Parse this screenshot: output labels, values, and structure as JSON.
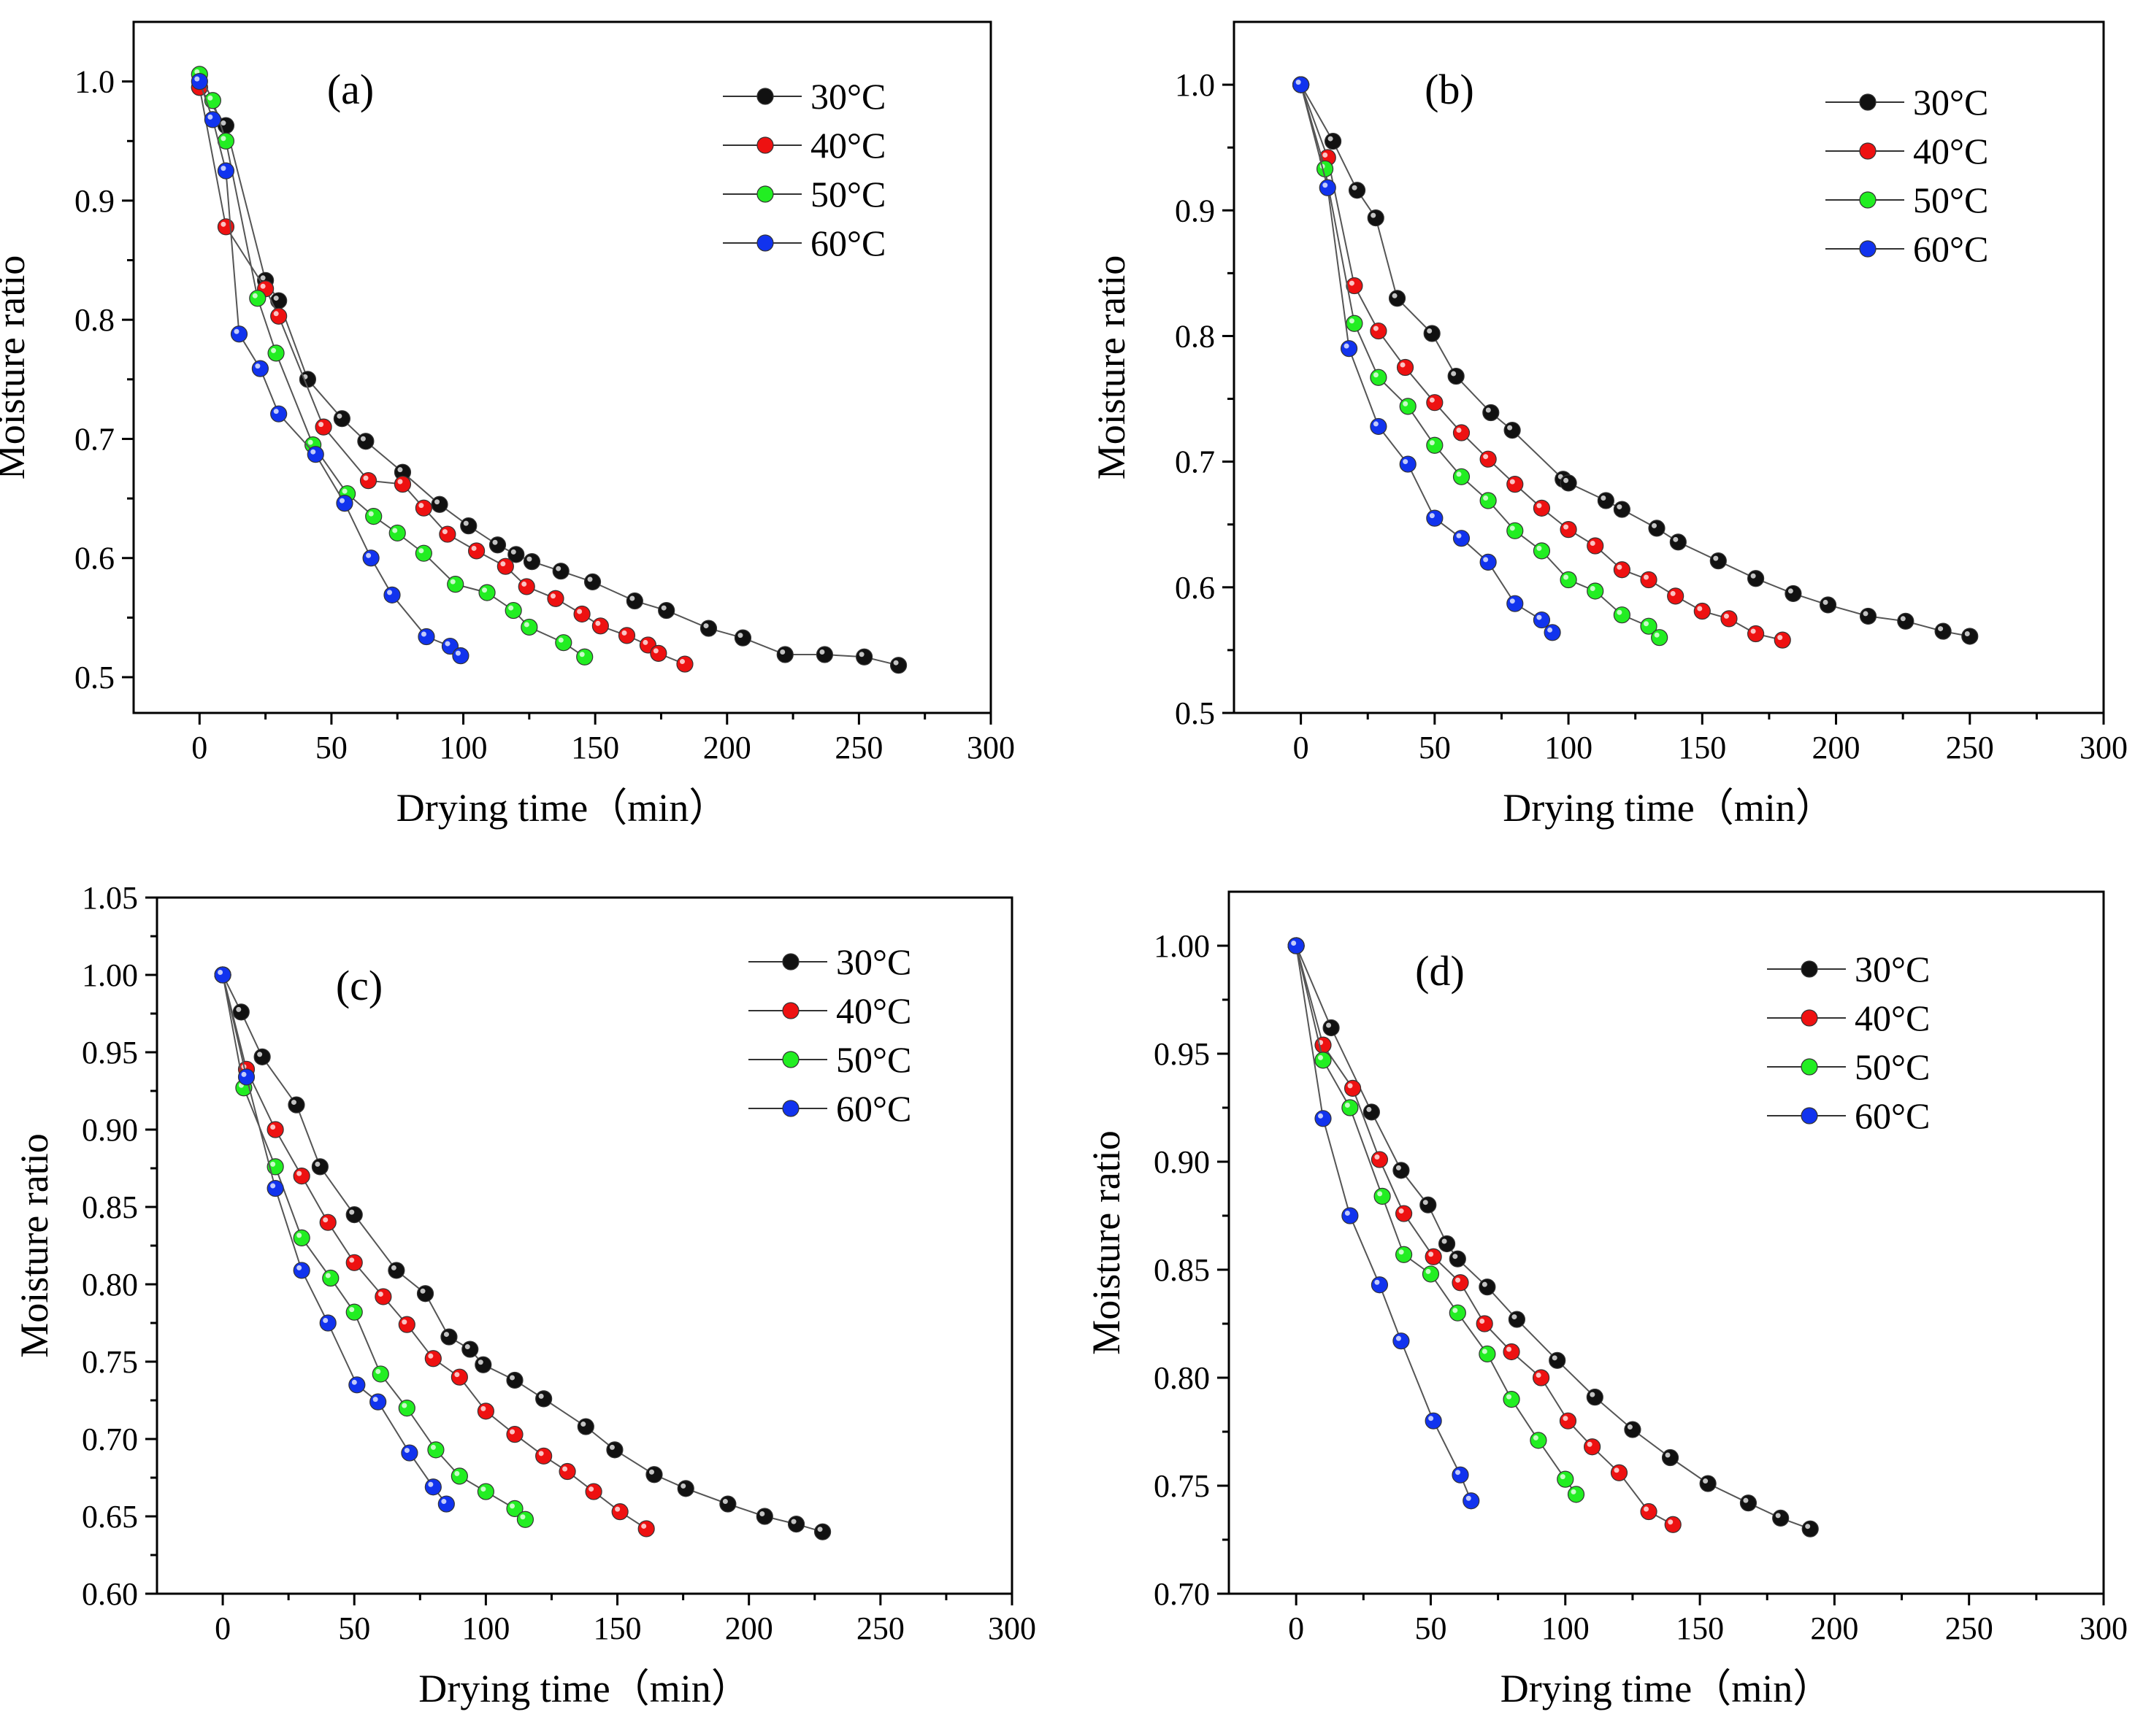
{
  "figure": {
    "series_colors": {
      "30°C": "#111111",
      "40°C": "#ee1111",
      "50°C": "#22ee22",
      "60°C": "#1133ee"
    }
  },
  "chart_data": [
    {
      "type": "line",
      "panel_label": "(a)",
      "xlabel": "Drying time（min）",
      "ylabel": "Moisture ratio",
      "xlim": [
        -25,
        300
      ],
      "ylim": [
        0.47,
        1.05
      ],
      "xticks": [
        0,
        50,
        100,
        150,
        200,
        250,
        300
      ],
      "xtick_labels": [
        "0",
        "50",
        "100",
        "150",
        "200",
        "250",
        "300"
      ],
      "yticks": [
        0.5,
        0.6,
        0.7,
        0.8,
        0.9,
        1.0
      ],
      "ytick_labels": [
        "0.5",
        "0.6",
        "0.7",
        "0.8",
        "0.9",
        "1.0"
      ],
      "legend_position": "top-right",
      "series": [
        {
          "name": "30°C",
          "x": [
            0,
            10,
            25,
            30,
            41,
            54,
            63,
            77,
            91,
            102,
            113,
            120,
            126,
            137,
            149,
            165,
            177,
            193,
            206,
            222,
            237,
            252,
            265
          ],
          "y": [
            0.995,
            0.963,
            0.833,
            0.816,
            0.75,
            0.717,
            0.698,
            0.672,
            0.645,
            0.627,
            0.611,
            0.603,
            0.597,
            0.589,
            0.58,
            0.564,
            0.556,
            0.541,
            0.533,
            0.519,
            0.519,
            0.517,
            0.51
          ]
        },
        {
          "name": "40°C",
          "x": [
            0,
            10,
            25,
            30,
            47,
            64,
            77,
            85,
            94,
            105,
            116,
            124,
            135,
            145,
            152,
            162,
            170,
            174,
            184
          ],
          "y": [
            0.995,
            0.878,
            0.826,
            0.803,
            0.71,
            0.665,
            0.662,
            0.642,
            0.62,
            0.606,
            0.593,
            0.576,
            0.566,
            0.553,
            0.543,
            0.535,
            0.527,
            0.52,
            0.511
          ]
        },
        {
          "name": "50°C",
          "x": [
            0,
            5,
            10,
            22,
            29,
            43,
            56,
            66,
            75,
            85,
            97,
            109,
            119,
            125,
            138,
            146
          ],
          "y": [
            1.006,
            0.984,
            0.95,
            0.818,
            0.772,
            0.695,
            0.654,
            0.635,
            0.621,
            0.604,
            0.578,
            0.571,
            0.556,
            0.542,
            0.529,
            0.517
          ]
        },
        {
          "name": "60°C",
          "x": [
            0,
            5,
            10,
            15,
            23,
            30,
            44,
            55,
            65,
            73,
            86,
            95,
            99
          ],
          "y": [
            1.0,
            0.968,
            0.925,
            0.788,
            0.759,
            0.721,
            0.687,
            0.646,
            0.6,
            0.569,
            0.534,
            0.526,
            0.518
          ]
        }
      ]
    },
    {
      "type": "line",
      "panel_label": "(b)",
      "xlabel": "Drying time（min）",
      "ylabel": "Moisture ratio",
      "xlim": [
        -25,
        300
      ],
      "ylim": [
        0.5,
        1.05
      ],
      "xticks": [
        0,
        50,
        100,
        150,
        200,
        250,
        300
      ],
      "xtick_labels": [
        "0",
        "50",
        "100",
        "150",
        "200",
        "250",
        "300"
      ],
      "yticks": [
        0.5,
        0.6,
        0.7,
        0.8,
        0.9,
        1.0
      ],
      "ytick_labels": [
        "0.5",
        "0.6",
        "0.7",
        "0.8",
        "0.9",
        "1.0"
      ],
      "legend_position": "top-right",
      "series": [
        {
          "name": "30°C",
          "x": [
            0,
            12,
            21,
            28,
            36,
            49,
            58,
            71,
            79,
            98,
            100,
            114,
            120,
            133,
            141,
            156,
            170,
            184,
            197,
            212,
            226,
            240,
            250
          ],
          "y": [
            1.0,
            0.955,
            0.916,
            0.894,
            0.83,
            0.802,
            0.768,
            0.739,
            0.725,
            0.686,
            0.683,
            0.669,
            0.662,
            0.647,
            0.636,
            0.621,
            0.607,
            0.595,
            0.586,
            0.577,
            0.573,
            0.565,
            0.561
          ]
        },
        {
          "name": "40°C",
          "x": [
            0,
            10,
            20,
            29,
            39,
            50,
            60,
            70,
            80,
            90,
            100,
            110,
            120,
            130,
            140,
            150,
            160,
            170,
            180
          ],
          "y": [
            1.0,
            0.942,
            0.84,
            0.804,
            0.775,
            0.747,
            0.723,
            0.702,
            0.682,
            0.663,
            0.646,
            0.633,
            0.614,
            0.606,
            0.593,
            0.581,
            0.575,
            0.563,
            0.558
          ]
        },
        {
          "name": "50°C",
          "x": [
            0,
            9,
            20,
            29,
            40,
            50,
            60,
            70,
            80,
            90,
            100,
            110,
            120,
            130,
            134
          ],
          "y": [
            1.0,
            0.933,
            0.81,
            0.767,
            0.744,
            0.713,
            0.688,
            0.669,
            0.645,
            0.629,
            0.606,
            0.597,
            0.578,
            0.569,
            0.56
          ]
        },
        {
          "name": "60°C",
          "x": [
            0,
            10,
            18,
            29,
            40,
            50,
            60,
            70,
            80,
            90,
            94
          ],
          "y": [
            1.0,
            0.918,
            0.79,
            0.728,
            0.698,
            0.655,
            0.639,
            0.62,
            0.587,
            0.574,
            0.564
          ]
        }
      ]
    },
    {
      "type": "line",
      "panel_label": "(c)",
      "xlabel": "Drying time（min）",
      "ylabel": "Moisture ratio",
      "xlim": [
        -25,
        300
      ],
      "ylim": [
        0.6,
        1.05
      ],
      "xticks": [
        0,
        50,
        100,
        150,
        200,
        250,
        300
      ],
      "xtick_labels": [
        "0",
        "50",
        "100",
        "150",
        "200",
        "250",
        "300"
      ],
      "yticks": [
        0.6,
        0.65,
        0.7,
        0.75,
        0.8,
        0.85,
        0.9,
        0.95,
        1.0,
        1.05
      ],
      "ytick_labels": [
        "0.60",
        "0.65",
        "0.70",
        "0.75",
        "0.80",
        "0.85",
        "0.90",
        "0.95",
        "1.00",
        "1.05"
      ],
      "legend_position": "top-right",
      "series": [
        {
          "name": "30°C",
          "x": [
            0,
            7,
            15,
            28,
            37,
            50,
            66,
            77,
            86,
            94,
            99,
            111,
            122,
            138,
            149,
            164,
            176,
            192,
            206,
            218,
            228
          ],
          "y": [
            1.0,
            0.976,
            0.947,
            0.916,
            0.876,
            0.845,
            0.809,
            0.794,
            0.766,
            0.758,
            0.748,
            0.738,
            0.726,
            0.708,
            0.693,
            0.677,
            0.668,
            0.658,
            0.65,
            0.645,
            0.64
          ]
        },
        {
          "name": "40°C",
          "x": [
            0,
            9,
            20,
            30,
            40,
            50,
            61,
            70,
            80,
            90,
            100,
            111,
            122,
            131,
            141,
            151,
            161
          ],
          "y": [
            1.0,
            0.939,
            0.9,
            0.87,
            0.84,
            0.814,
            0.792,
            0.774,
            0.752,
            0.74,
            0.718,
            0.703,
            0.689,
            0.679,
            0.666,
            0.653,
            0.642
          ]
        },
        {
          "name": "50°C",
          "x": [
            0,
            8,
            20,
            30,
            41,
            50,
            60,
            70,
            81,
            90,
            100,
            111,
            115
          ],
          "y": [
            1.0,
            0.927,
            0.876,
            0.83,
            0.804,
            0.782,
            0.742,
            0.72,
            0.693,
            0.676,
            0.666,
            0.655,
            0.648
          ]
        },
        {
          "name": "60°C",
          "x": [
            0,
            9,
            20,
            30,
            40,
            51,
            59,
            71,
            80,
            85
          ],
          "y": [
            1.0,
            0.934,
            0.862,
            0.809,
            0.775,
            0.735,
            0.724,
            0.691,
            0.669,
            0.658
          ]
        }
      ]
    },
    {
      "type": "line",
      "panel_label": "(d)",
      "xlabel": "Drying time（min）",
      "ylabel": "Moisture ratio",
      "xlim": [
        -25,
        300
      ],
      "ylim": [
        0.7,
        1.025
      ],
      "xticks": [
        0,
        50,
        100,
        150,
        200,
        250,
        300
      ],
      "xtick_labels": [
        "0",
        "50",
        "100",
        "150",
        "200",
        "250",
        "300"
      ],
      "yticks": [
        0.7,
        0.75,
        0.8,
        0.85,
        0.9,
        0.95,
        1.0
      ],
      "ytick_labels": [
        "0.70",
        "0.75",
        "0.80",
        "0.85",
        "0.90",
        "0.95",
        "1.00"
      ],
      "legend_position": "top-right",
      "series": [
        {
          "name": "30°C",
          "x": [
            0,
            13,
            28,
            39,
            49,
            56,
            60,
            71,
            82,
            97,
            111,
            125,
            139,
            153,
            168,
            180,
            191
          ],
          "y": [
            1.0,
            0.962,
            0.923,
            0.896,
            0.88,
            0.862,
            0.855,
            0.842,
            0.827,
            0.808,
            0.791,
            0.776,
            0.763,
            0.751,
            0.742,
            0.735,
            0.73
          ]
        },
        {
          "name": "40°C",
          "x": [
            0,
            10,
            21,
            31,
            40,
            51,
            61,
            70,
            80,
            91,
            101,
            110,
            120,
            131,
            140
          ],
          "y": [
            1.0,
            0.954,
            0.934,
            0.901,
            0.876,
            0.856,
            0.844,
            0.825,
            0.812,
            0.8,
            0.78,
            0.768,
            0.756,
            0.738,
            0.732
          ]
        },
        {
          "name": "50°C",
          "x": [
            0,
            10,
            20,
            32,
            40,
            50,
            60,
            71,
            80,
            90,
            100,
            104
          ],
          "y": [
            1.0,
            0.947,
            0.925,
            0.884,
            0.857,
            0.848,
            0.83,
            0.811,
            0.79,
            0.771,
            0.753,
            0.746
          ]
        },
        {
          "name": "60°C",
          "x": [
            0,
            10,
            20,
            31,
            39,
            51,
            61,
            65
          ],
          "y": [
            1.0,
            0.92,
            0.875,
            0.843,
            0.817,
            0.78,
            0.755,
            0.743
          ]
        }
      ]
    }
  ]
}
